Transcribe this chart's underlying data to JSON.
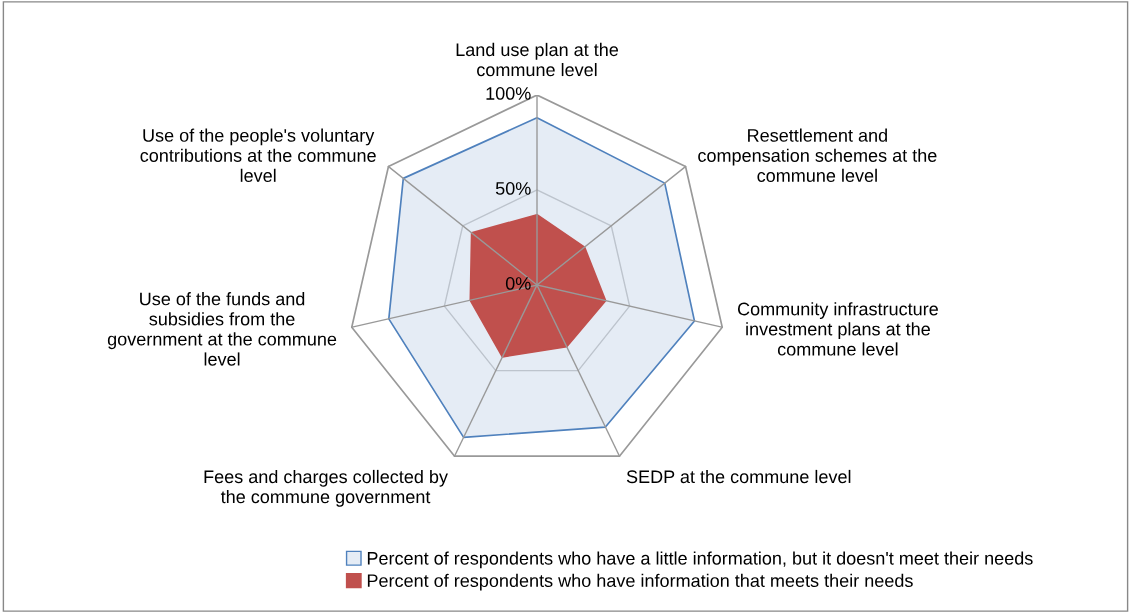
{
  "chart_data": {
    "type": "radar",
    "categories": [
      "Land use plan at the\ncommune level",
      "Resettlement and\ncompensation schemes at the\ncommune level",
      "Community infrastructure\ninvestment plans at the\ncommune level",
      "SEDP at the commune level",
      "Fees and charges collected by\nthe commune government",
      "Use of the funds and\nsubsidies from the\ngovernment at the commune\nlevel",
      "Use of the people's voluntary\ncontributions at the commune\nlevel"
    ],
    "series": [
      {
        "name": "Percent of respondents who have a little information, but it doesn't meet their needs",
        "color": "#4f81bd",
        "values": [
          88,
          86,
          85,
          83,
          89,
          80,
          90
        ]
      },
      {
        "name": "Percent of respondents who have information that meets their needs",
        "color": "#c0504d",
        "values": [
          37,
          32,
          37,
          36,
          42,
          36,
          44
        ]
      }
    ],
    "ylim": [
      0,
      100
    ],
    "yticks": [
      {
        "value": 0,
        "label": "0%"
      },
      {
        "value": 50,
        "label": "50%"
      },
      {
        "value": 100,
        "label": "100%"
      }
    ],
    "grid": true,
    "legend": "bottom"
  }
}
